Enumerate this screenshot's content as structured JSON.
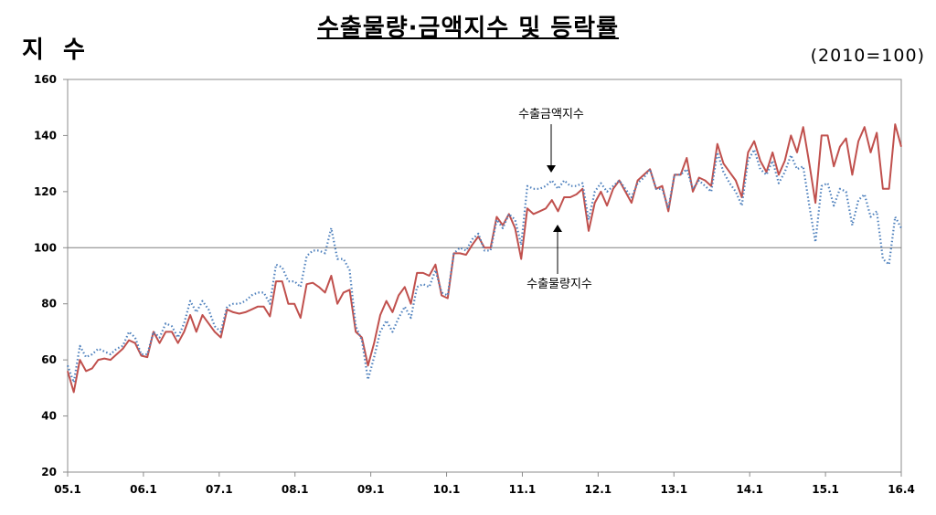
{
  "header": {
    "title": "수출물량·금액지수 및 등락률",
    "ylabel": "지 수",
    "base_note": "(2010=100)"
  },
  "colors": {
    "volume": "#c0504d",
    "value": "#4f81bd",
    "reference": "#808080"
  },
  "chart_data": {
    "type": "line",
    "title": "수출물량·금액지수 및 등락률",
    "ylabel": "지 수",
    "xlabel": "",
    "ylim": [
      20,
      160
    ],
    "yticks": [
      20,
      40,
      60,
      80,
      100,
      120,
      140,
      160
    ],
    "xticks": [
      "05.1",
      "06.1",
      "07.1",
      "08.1",
      "09.1",
      "10.1",
      "11.1",
      "12.1",
      "13.1",
      "14.1",
      "15.1",
      "16.4"
    ],
    "reference_line": 100,
    "grid": false,
    "series": [
      {
        "name": "수출물량지수",
        "style": "solid",
        "values": [
          56,
          48.5,
          60,
          56,
          57,
          60,
          60.5,
          60,
          62,
          64,
          67,
          66,
          61.5,
          61,
          70,
          66,
          70,
          70,
          66,
          70,
          76,
          70,
          76,
          73,
          70,
          68,
          78,
          77,
          76.5,
          77,
          78,
          79,
          79,
          75.5,
          88,
          88,
          80,
          80,
          75,
          87,
          87.5,
          86,
          84,
          90,
          80,
          84,
          85,
          70,
          68,
          58,
          66,
          76,
          81,
          77,
          83,
          86,
          80,
          91,
          91,
          90,
          94,
          83,
          82,
          98,
          98,
          97.5,
          101,
          104,
          100,
          100,
          111,
          108,
          112,
          107,
          96,
          114,
          112,
          113,
          114,
          117,
          113,
          118,
          118,
          119,
          121,
          106,
          116,
          120,
          115,
          121,
          124,
          120,
          116,
          124,
          126,
          128,
          121,
          122,
          113,
          126,
          126,
          132,
          120,
          125,
          124,
          122,
          137,
          130,
          127,
          124,
          118,
          134,
          138,
          131,
          127,
          134,
          126,
          131,
          140,
          134,
          143,
          130,
          116,
          140,
          140,
          129,
          136,
          139,
          126,
          138,
          143,
          134,
          141,
          121,
          121,
          144,
          136
        ]
      },
      {
        "name": "수출금액지수",
        "style": "dotted",
        "values": [
          58,
          52,
          65,
          61,
          62,
          64,
          63,
          62,
          64,
          65,
          70,
          68,
          62,
          62,
          70,
          68,
          73,
          72,
          68,
          73,
          81,
          77,
          81,
          78,
          72,
          70,
          79,
          80,
          80,
          81,
          83,
          84,
          84,
          80,
          94,
          93,
          88,
          88,
          86,
          97,
          99,
          99,
          98,
          107,
          96,
          96,
          92,
          72,
          67,
          53,
          61,
          70,
          74,
          70,
          75,
          79,
          75,
          86,
          87,
          86,
          92,
          84,
          83,
          98,
          100,
          99,
          103,
          105,
          99,
          99,
          110,
          107,
          112,
          110,
          101,
          122,
          121,
          121,
          122,
          124,
          121,
          124,
          122,
          122,
          123,
          110,
          120,
          123,
          120,
          122,
          124,
          121,
          118,
          123,
          125,
          128,
          121,
          121,
          114,
          126,
          126,
          128,
          121,
          124,
          122,
          120,
          134,
          127,
          123,
          120,
          115,
          131,
          135,
          128,
          126,
          131,
          123,
          127,
          133,
          128,
          129,
          115,
          102,
          122,
          123,
          115,
          121,
          120,
          108,
          117,
          119,
          111,
          113,
          96,
          94,
          111,
          107
        ]
      }
    ],
    "annotations": [
      {
        "text": "수출금액지수",
        "target_series": "수출금액지수"
      },
      {
        "text": "수출물량지수",
        "target_series": "수출물량지수"
      }
    ]
  }
}
